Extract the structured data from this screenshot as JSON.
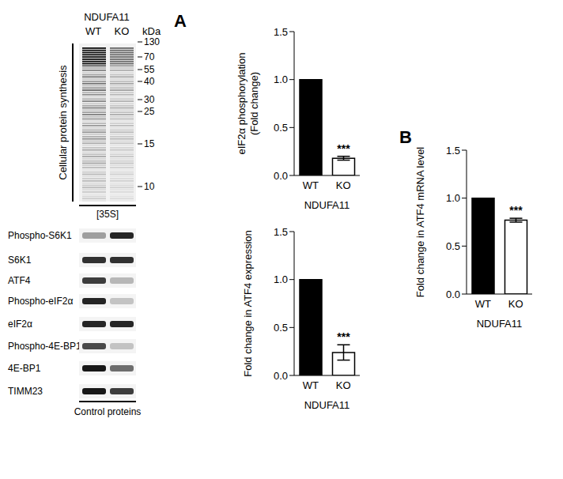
{
  "figure": {
    "panel_labels": [
      "A",
      "B"
    ],
    "blot": {
      "gene": "NDUFA11",
      "lanes": [
        "WT",
        "KO"
      ],
      "marker_unit": "kDa",
      "markers": [
        130,
        70,
        55,
        40,
        30,
        25,
        15,
        10
      ],
      "section_label": "Cellular protein synthesis",
      "isotope_label": "[35S]",
      "proteins": [
        "Phospho-S6K1",
        "S6K1",
        "ATF4",
        "Phospho-eIF2α",
        "eIF2α",
        "Phospho-4E-BP1",
        "4E-BP1",
        "TIMM23"
      ],
      "proteins_label": "Control proteins"
    }
  },
  "chart_data": [
    {
      "type": "bar",
      "ylabel": "eIF2α phosphorylation\n(Fold change)",
      "xlabel": "NDUFA11",
      "categories": [
        "WT",
        "KO"
      ],
      "values": [
        1,
        0.18
      ],
      "errors": [
        0,
        0.02
      ],
      "colors": [
        "#000000",
        "#ffffff"
      ],
      "annotations": [
        null,
        "***"
      ],
      "ylim": [
        0,
        1.5
      ],
      "yticks": [
        {
          "value": 0,
          "label": "0.0"
        },
        0.5,
        {
          "value": 1,
          "label": "1.0"
        },
        1.5
      ]
    },
    {
      "type": "bar",
      "ylabel": "Fold change in ATF4 expression",
      "xlabel": "NDUFA11",
      "categories": [
        "WT",
        "KO"
      ],
      "values": [
        1,
        0.24
      ],
      "errors": [
        0,
        0.08
      ],
      "colors": [
        "#000000",
        "#ffffff"
      ],
      "annotations": [
        null,
        "***"
      ],
      "ylim": [
        0,
        1.5
      ],
      "yticks": [
        {
          "value": 0,
          "label": "0.0"
        },
        0.5,
        {
          "value": 1,
          "label": "1.0"
        },
        1.5
      ]
    },
    {
      "type": "bar",
      "ylabel": "Fold change in ATF4 mRNA level",
      "xlabel": "NDUFA11",
      "categories": [
        "WT",
        "KO"
      ],
      "values": [
        1,
        0.77
      ],
      "errors": [
        0,
        0.02
      ],
      "colors": [
        "#000000",
        "#ffffff"
      ],
      "annotations": [
        null,
        "***"
      ],
      "ylim": [
        0,
        1.5
      ],
      "yticks": [
        {
          "value": 0,
          "label": "0.0"
        },
        0.5,
        {
          "value": 1,
          "label": "1.0"
        },
        1.5
      ]
    }
  ]
}
